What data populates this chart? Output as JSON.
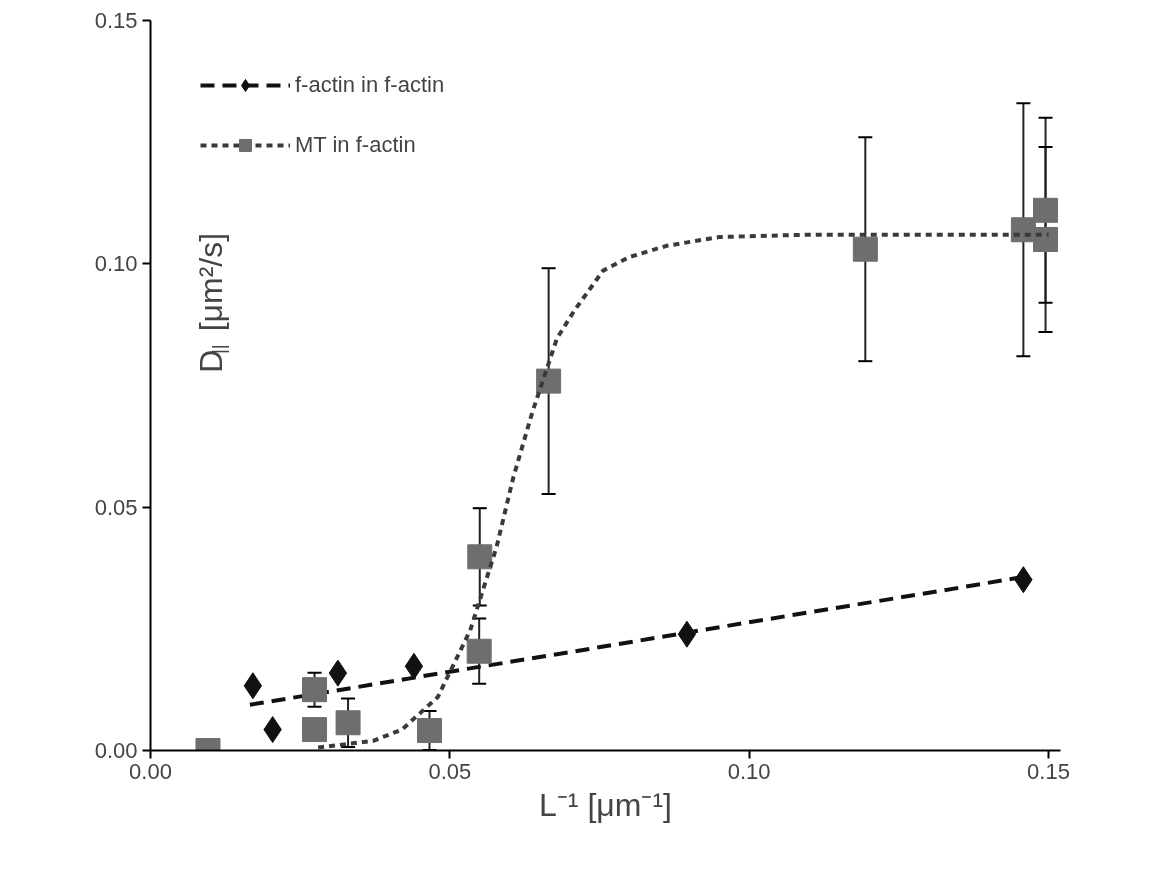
{
  "chart_data": {
    "type": "scatter",
    "xlabel": "L⁻¹ [μm⁻¹]",
    "ylabel": "D$_{||}$ [μm²/s]",
    "xlim": [
      0,
      0.152
    ],
    "ylim": [
      0,
      0.15
    ],
    "xticks": [
      {
        "value": 0,
        "label": "0.00"
      },
      {
        "value": 0.05,
        "label": "0.05"
      },
      {
        "value": 0.1,
        "label": "0.10"
      },
      {
        "value": 0.15,
        "label": "0.15"
      }
    ],
    "yticks": [
      {
        "value": 0,
        "label": "0.00"
      },
      {
        "value": 0.05,
        "label": "0.05"
      },
      {
        "value": 0.1,
        "label": "0.10"
      },
      {
        "value": 0.15,
        "label": "0.15"
      }
    ],
    "grid": false,
    "legend": "top left",
    "series": [
      {
        "name": "f-actin in f-actin",
        "marker": "diamond",
        "color": "#111111",
        "x": [
          0.0171,
          0.0204,
          0.0313,
          0.044,
          0.0896,
          0.1458
        ],
        "values": [
          0.0133,
          0.0043,
          0.0159,
          0.0173,
          0.0239,
          0.0351
        ]
      },
      {
        "type": "line",
        "line_style": "dashed",
        "marker": "none",
        "color": "#111111",
        "x": [
          0.0166,
          0.03,
          0.05,
          0.07,
          0.09,
          0.11,
          0.13,
          0.145
        ],
        "values": [
          0.0094,
          0.0121,
          0.0162,
          0.0202,
          0.0243,
          0.0284,
          0.0324,
          0.0355
        ]
      },
      {
        "name": "MT in f-actin",
        "marker": "square",
        "color": "#6e6e6e",
        "x": [
          0.0096,
          0.0274,
          0.0274,
          0.033,
          0.0466,
          0.055,
          0.0549,
          0.0665,
          0.1194,
          0.1458,
          0.1495,
          0.1495
        ],
        "values": [
          0.0,
          0.0125,
          0.0043,
          0.0057,
          0.0041,
          0.0398,
          0.0204,
          0.0759,
          0.103,
          0.107,
          0.111,
          0.105
        ],
        "errors": [
          null,
          0.0035,
          null,
          0.005,
          0.004,
          0.01,
          0.0067,
          0.0232,
          0.023,
          0.026,
          0.019,
          0.019
        ]
      },
      {
        "type": "line",
        "line_style": "dotted",
        "marker": "none",
        "color": "#3a3a3a",
        "x": [
          0.028,
          0.0372,
          0.042,
          0.048,
          0.0534,
          0.0578,
          0.0606,
          0.0638,
          0.0679,
          0.0708,
          0.0756,
          0.08,
          0.0862,
          0.095,
          0.11,
          0.13,
          0.15
        ],
        "values": [
          0.0006,
          0.002,
          0.0043,
          0.011,
          0.0247,
          0.0418,
          0.0561,
          0.0696,
          0.0847,
          0.0904,
          0.0986,
          0.1014,
          0.1037,
          0.1055,
          0.106,
          0.106,
          0.106
        ]
      }
    ]
  }
}
